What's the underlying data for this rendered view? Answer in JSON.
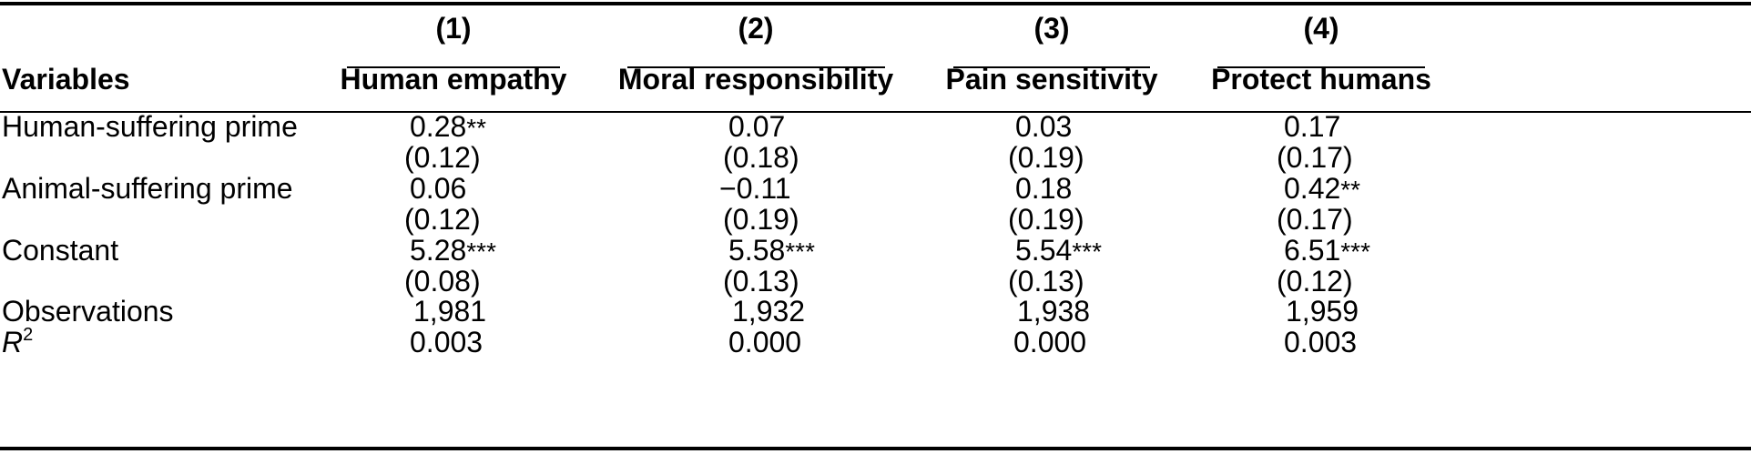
{
  "table": {
    "header": {
      "variables_label": "Variables",
      "columns": [
        {
          "number": "(1)",
          "name": "Human empathy"
        },
        {
          "number": "(2)",
          "name": "Moral responsibility"
        },
        {
          "number": "(3)",
          "name": "Pain sensitivity"
        },
        {
          "number": "(4)",
          "name": "Protect humans"
        }
      ]
    },
    "rows": {
      "human_prime": {
        "label": "Human-suffering prime",
        "coef": [
          "0.28",
          "0.07",
          "0.03",
          "0.17"
        ],
        "stars": [
          "**",
          "",
          "",
          ""
        ],
        "se": [
          "(0.12)",
          "(0.18)",
          "(0.19)",
          "(0.17)"
        ]
      },
      "animal_prime": {
        "label": "Animal-suffering prime",
        "coef": [
          "0.06",
          "−0.11",
          "0.18",
          "0.42"
        ],
        "stars": [
          "",
          "",
          "",
          "**"
        ],
        "se": [
          "(0.12)",
          "(0.19)",
          "(0.19)",
          "(0.17)"
        ]
      },
      "constant": {
        "label": "Constant",
        "coef": [
          "5.28",
          "5.58",
          "5.54",
          "6.51"
        ],
        "stars": [
          "***",
          "***",
          "***",
          "***"
        ],
        "se": [
          "(0.08)",
          "(0.13)",
          "(0.13)",
          "(0.12)"
        ]
      },
      "observations": {
        "label": "Observations",
        "values": [
          "1,981",
          "1,932",
          "1,938",
          "1,959"
        ]
      },
      "r2": {
        "label_main": "R",
        "label_sup": "2",
        "values": [
          "0.003",
          "0.000",
          "0.000",
          "0.003"
        ]
      }
    }
  }
}
